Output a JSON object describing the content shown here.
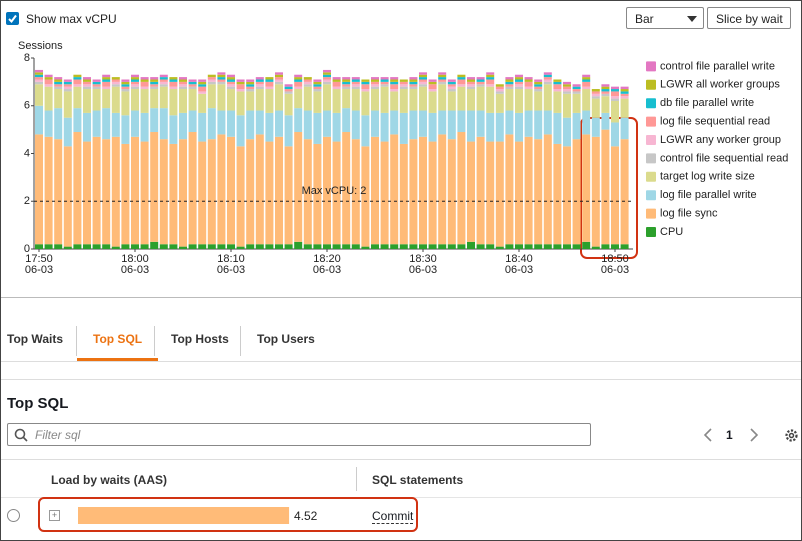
{
  "controls": {
    "show_max_vcpu": "Show max vCPU",
    "chart_type": "Bar",
    "slice": "Slice by wait"
  },
  "chart_data": {
    "type": "stacked_bar",
    "y_axis_title": "Sessions",
    "ylim": [
      0,
      8
    ],
    "yticks": [
      0,
      2,
      4,
      6,
      8
    ],
    "grid": false,
    "annotations": [
      {
        "text": "Max vCPU: 2",
        "y": 2
      }
    ],
    "categories": [
      "17:50\n06-03",
      null,
      null,
      null,
      null,
      null,
      null,
      null,
      null,
      null,
      "18:00\n06-03",
      null,
      null,
      null,
      null,
      null,
      null,
      null,
      null,
      null,
      "18:10\n06-03",
      null,
      null,
      null,
      null,
      null,
      null,
      null,
      null,
      null,
      "18:20\n06-03",
      null,
      null,
      null,
      null,
      null,
      null,
      null,
      null,
      null,
      "18:30\n06-03",
      null,
      null,
      null,
      null,
      null,
      null,
      null,
      null,
      null,
      "18:40\n06-03",
      null,
      null,
      null,
      null,
      null,
      null,
      null,
      null,
      null,
      "18:50\n06-03",
      null
    ],
    "series": [
      {
        "name": "CPU",
        "color": "#2ca02c",
        "values": [
          0.2,
          0.2,
          0.2,
          0.1,
          0.2,
          0.2,
          0.2,
          0.2,
          0.1,
          0.2,
          0.2,
          0.2,
          0.3,
          0.2,
          0.2,
          0.1,
          0.2,
          0.2,
          0.2,
          0.2,
          0.2,
          0.1,
          0.2,
          0.2,
          0.2,
          0.2,
          0.2,
          0.3,
          0.2,
          0.2,
          0.2,
          0.2,
          0.2,
          0.2,
          0.1,
          0.2,
          0.2,
          0.2,
          0.2,
          0.2,
          0.2,
          0.2,
          0.2,
          0.2,
          0.2,
          0.3,
          0.2,
          0.2,
          0.1,
          0.2,
          0.2,
          0.2,
          0.2,
          0.2,
          0.2,
          0.2,
          0.2,
          0.3,
          0.1,
          0.2,
          0.2,
          0.2
        ]
      },
      {
        "name": "log file sync",
        "color": "#ffbb78",
        "values": [
          4.6,
          4.5,
          4.4,
          4.2,
          4.7,
          4.3,
          4.5,
          4.4,
          4.6,
          4.2,
          4.5,
          4.3,
          4.6,
          4.4,
          4.2,
          4.5,
          4.7,
          4.3,
          4.4,
          4.6,
          4.5,
          4.2,
          4.4,
          4.6,
          4.3,
          4.5,
          4.1,
          4.6,
          4.4,
          4.2,
          4.5,
          4.3,
          4.7,
          4.4,
          4.2,
          4.5,
          4.3,
          4.6,
          4.2,
          4.4,
          4.5,
          4.3,
          4.6,
          4.4,
          4.7,
          4.2,
          4.5,
          4.3,
          4.4,
          4.6,
          4.3,
          4.5,
          4.4,
          4.6,
          4.2,
          4.1,
          4.4,
          4.5,
          4.6,
          4.8,
          4.1,
          4.4
        ]
      },
      {
        "name": "log file parallel write",
        "color": "#9fd7e6",
        "values": [
          1.2,
          1.1,
          1.3,
          1.2,
          1.0,
          1.2,
          1.1,
          1.3,
          1.0,
          1.2,
          1.1,
          1.2,
          1.0,
          1.3,
          1.2,
          1.1,
          0.9,
          1.2,
          1.3,
          1.0,
          1.1,
          1.3,
          1.2,
          1.0,
          1.2,
          1.1,
          1.3,
          1.0,
          1.2,
          1.3,
          1.1,
          1.2,
          1.0,
          1.2,
          1.3,
          1.1,
          1.2,
          1.0,
          1.3,
          1.2,
          1.1,
          1.2,
          1.0,
          1.2,
          0.9,
          1.3,
          1.1,
          1.2,
          1.2,
          1.0,
          1.2,
          1.1,
          1.2,
          1.0,
          1.3,
          1.2,
          1.1,
          1.0,
          0.8,
          0.7,
          1.0,
          0.9
        ]
      },
      {
        "name": "target log write size",
        "color": "#dbdb8d",
        "values": [
          0.9,
          1.0,
          0.8,
          1.1,
          0.9,
          1.0,
          0.9,
          0.8,
          1.1,
          1.0,
          0.9,
          1.0,
          0.8,
          0.9,
          1.1,
          1.0,
          0.9,
          0.8,
          1.0,
          1.1,
          0.9,
          1.0,
          0.8,
          0.9,
          1.0,
          1.1,
          0.9,
          0.8,
          1.0,
          0.9,
          1.1,
          1.0,
          0.8,
          0.9,
          1.0,
          0.9,
          1.1,
          0.8,
          1.0,
          0.9,
          1.0,
          0.9,
          1.1,
          0.8,
          1.0,
          0.9,
          1.0,
          1.1,
          0.8,
          0.9,
          1.0,
          0.9,
          0.8,
          1.1,
          0.9,
          1.0,
          0.8,
          0.9,
          0.8,
          0.7,
          0.9,
          0.8
        ]
      },
      {
        "name": "control file sequential read",
        "color": "#c7c7c7",
        "values": [
          0.1,
          0,
          0.1,
          0.1,
          0,
          0.1,
          0.1,
          0,
          0.1,
          0.1,
          0.1,
          0,
          0.1,
          0.1,
          0,
          0.1,
          0.1,
          0,
          0.1,
          0.1,
          0.1,
          0,
          0.1,
          0.1,
          0,
          0.1,
          0.1,
          0,
          0.1,
          0.1,
          0.1,
          0,
          0.1,
          0.1,
          0,
          0.1,
          0.1,
          0,
          0.1,
          0.1,
          0.1,
          0,
          0.1,
          0.1,
          0,
          0.1,
          0.1,
          0,
          0.1,
          0.1,
          0.1,
          0,
          0.1,
          0.1,
          0,
          0.1,
          0.1,
          0,
          0.1,
          0.1,
          0.1,
          0
        ]
      },
      {
        "name": "LGWR any worker group",
        "color": "#f7b6d2",
        "values": [
          0.1,
          0.1,
          0,
          0.1,
          0.1,
          0.1,
          0,
          0.1,
          0.1,
          0,
          0.1,
          0.1,
          0,
          0.1,
          0.1,
          0.1,
          0,
          0.1,
          0.1,
          0,
          0.1,
          0.1,
          0,
          0.1,
          0.1,
          0.1,
          0,
          0.1,
          0.1,
          0,
          0.1,
          0.1,
          0,
          0.1,
          0.1,
          0.1,
          0,
          0.1,
          0.1,
          0,
          0.1,
          0.1,
          0,
          0.1,
          0.1,
          0.1,
          0,
          0.1,
          0.1,
          0,
          0.1,
          0.1,
          0,
          0.1,
          0.1,
          0.1,
          0,
          0.1,
          0.1,
          0,
          0.1,
          0.1
        ]
      },
      {
        "name": "log file sequential read",
        "color": "#ff9896",
        "values": [
          0.1,
          0.2,
          0.1,
          0.1,
          0.2,
          0.1,
          0.1,
          0.2,
          0.1,
          0.1,
          0.1,
          0.2,
          0.1,
          0.1,
          0.2,
          0.1,
          0.1,
          0.2,
          0.1,
          0.1,
          0.1,
          0.2,
          0.1,
          0.1,
          0.2,
          0.1,
          0.1,
          0.2,
          0.1,
          0.1,
          0.1,
          0.2,
          0.1,
          0.1,
          0.2,
          0.1,
          0.1,
          0.2,
          0.1,
          0.1,
          0.1,
          0.2,
          0.1,
          0.1,
          0.2,
          0.1,
          0.1,
          0.2,
          0.1,
          0.1,
          0.1,
          0.2,
          0.1,
          0.1,
          0.2,
          0.1,
          0.1,
          0.2,
          0.1,
          0.1,
          0.2,
          0.1
        ]
      },
      {
        "name": "db file parallel write",
        "color": "#17becf",
        "values": [
          0.1,
          0,
          0.1,
          0.1,
          0.1,
          0,
          0.1,
          0.1,
          0,
          0.1,
          0.1,
          0,
          0.1,
          0.1,
          0.1,
          0,
          0.1,
          0.1,
          0,
          0.1,
          0.1,
          0,
          0.1,
          0.1,
          0.1,
          0,
          0.1,
          0.1,
          0,
          0.1,
          0.1,
          0,
          0.1,
          0.1,
          0.1,
          0,
          0.1,
          0.1,
          0,
          0.1,
          0.1,
          0,
          0.1,
          0.1,
          0.1,
          0,
          0.1,
          0.1,
          0,
          0.1,
          0.1,
          0,
          0.1,
          0.1,
          0.1,
          0,
          0.1,
          0.1,
          0,
          0.1,
          0.1,
          0.1
        ]
      },
      {
        "name": "LGWR all worker groups",
        "color": "#bcbd22",
        "values": [
          0.1,
          0.1,
          0.1,
          0,
          0.1,
          0.1,
          0,
          0.1,
          0.1,
          0.1,
          0.1,
          0.1,
          0.1,
          0,
          0.1,
          0.1,
          0,
          0.1,
          0.1,
          0.1,
          0.1,
          0.1,
          0.1,
          0,
          0.1,
          0.1,
          0,
          0.1,
          0.1,
          0.1,
          0.1,
          0.1,
          0.1,
          0,
          0.1,
          0.1,
          0,
          0.1,
          0.1,
          0.1,
          0.1,
          0.1,
          0.1,
          0,
          0.1,
          0.1,
          0,
          0.1,
          0.1,
          0.1,
          0.1,
          0.1,
          0.1,
          0,
          0.1,
          0.1,
          0,
          0.1,
          0.1,
          0.1,
          0,
          0.1
        ]
      },
      {
        "name": "control file parallel write",
        "color": "#e377c2",
        "values": [
          0.1,
          0.1,
          0.1,
          0.1,
          0,
          0.1,
          0.1,
          0.1,
          0,
          0.1,
          0.1,
          0.1,
          0.1,
          0.1,
          0,
          0.1,
          0.1,
          0.1,
          0,
          0.1,
          0.1,
          0.1,
          0.1,
          0.1,
          0,
          0.1,
          0.1,
          0.1,
          0,
          0.1,
          0.1,
          0.1,
          0.1,
          0.1,
          0,
          0.1,
          0.1,
          0.1,
          0,
          0.1,
          0.1,
          0.1,
          0.1,
          0.1,
          0,
          0.1,
          0.1,
          0.1,
          0,
          0.1,
          0.1,
          0.1,
          0.1,
          0.1,
          0,
          0.1,
          0.1,
          0.1,
          0,
          0.1,
          0.1,
          0.1
        ]
      }
    ]
  },
  "tabs": {
    "items": [
      "Top Waits",
      "Top SQL",
      "Top Hosts",
      "Top Users"
    ],
    "active": 1
  },
  "section": {
    "title": "Top SQL",
    "filter_placeholder": "Filter sql",
    "page": 1
  },
  "table": {
    "headers": [
      "Load by waits (AAS)",
      "SQL statements"
    ],
    "rows": [
      {
        "load": 4.52,
        "statement": "Commit"
      }
    ]
  }
}
